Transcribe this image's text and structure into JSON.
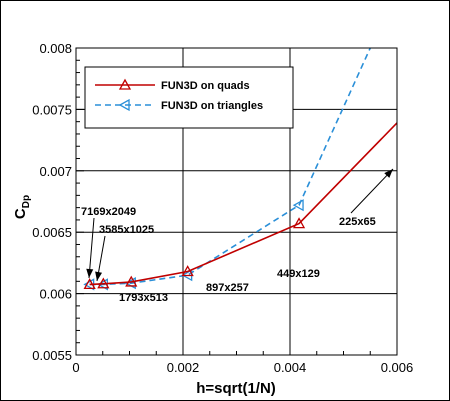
{
  "chart_data": {
    "type": "line",
    "xlabel": "h=sqrt(1/N)",
    "ylabel": "C",
    "ylabel_subscript": "Dp",
    "xlim": [
      0,
      0.006
    ],
    "ylim": [
      0.0055,
      0.008
    ],
    "x_ticks": [
      "0",
      "0.002",
      "0.004",
      "0.006"
    ],
    "y_ticks": [
      "0.0055",
      "0.006",
      "0.0065",
      "0.007",
      "0.0075",
      "0.008"
    ],
    "grid": true,
    "legend_position": "top-left",
    "series": [
      {
        "name": "FUN3D on quads",
        "color": "#c00000",
        "line_style": "solid",
        "marker": "triangle-up",
        "x": [
          0.000255,
          0.000511,
          0.001033,
          0.002087,
          0.004169,
          0.006
        ],
        "y": [
          0.006075,
          0.00608,
          0.006095,
          0.00618,
          0.00657,
          0.00739
        ]
      },
      {
        "name": "FUN3D on triangles",
        "color": "#2a8fd8",
        "line_style": "dashed",
        "marker": "triangle-left",
        "x": [
          0.000255,
          0.000511,
          0.001033,
          0.002087,
          0.004169,
          0.0055
        ],
        "y": [
          0.006075,
          0.006075,
          0.006085,
          0.00615,
          0.00672,
          0.008
        ]
      }
    ],
    "annotations": [
      {
        "text": "7169x2049",
        "arrow": true
      },
      {
        "text": "3585x1025",
        "arrow": true
      },
      {
        "text": "1793x513",
        "arrow": false
      },
      {
        "text": "897x257",
        "arrow": false
      },
      {
        "text": "449x129",
        "arrow": false
      },
      {
        "text": "225x65",
        "arrow": true
      }
    ]
  }
}
